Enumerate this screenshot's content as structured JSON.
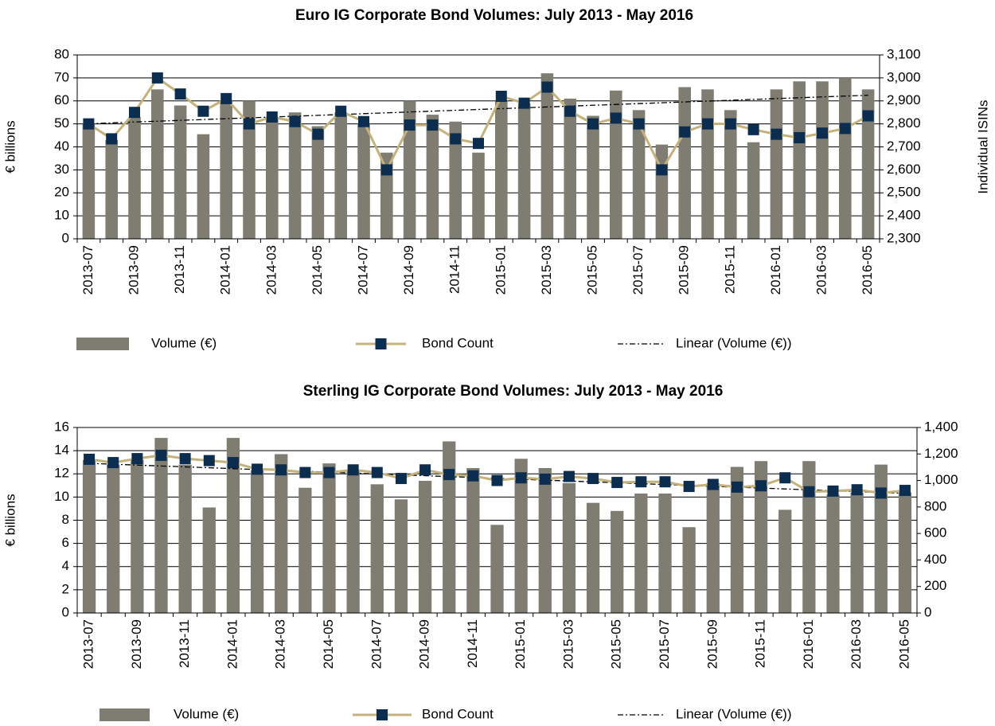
{
  "chart_data": [
    {
      "type": "bar-line",
      "title": "Euro IG Corporate Bond Volumes: July 2013 - May 2016",
      "categories": [
        "2013-07",
        null,
        "2013-09",
        null,
        "2013-11",
        null,
        "2014-01",
        null,
        "2014-03",
        null,
        "2014-05",
        null,
        "2014-07",
        null,
        "2014-09",
        null,
        "2014-11",
        null,
        "2015-01",
        null,
        "2015-03",
        null,
        "2015-05",
        null,
        "2015-07",
        null,
        "2015-09",
        null,
        "2015-11",
        null,
        "2016-01",
        null,
        "2016-03",
        null,
        "2016-05"
      ],
      "y_label": "€ billions",
      "y2_label": "Individual ISINs",
      "ylim": [
        0,
        80
      ],
      "yticks": [
        0,
        10,
        20,
        30,
        40,
        50,
        60,
        70,
        80
      ],
      "y2lim": [
        2300,
        3100
      ],
      "y2ticks": [
        {
          "value": 2300,
          "label": "2,300"
        },
        {
          "value": 2400,
          "label": "2,400"
        },
        {
          "value": 2500,
          "label": "2,500"
        },
        {
          "value": 2600,
          "label": "2,600"
        },
        {
          "value": 2700,
          "label": "2,700"
        },
        {
          "value": 2800,
          "label": "2,800"
        },
        {
          "value": 2900,
          "label": "2,900"
        },
        {
          "value": 3000,
          "label": "3,000"
        },
        {
          "value": 3100,
          "label": "3,100"
        }
      ],
      "grid": true,
      "series": [
        {
          "name": "Volume (€)",
          "type": "bar",
          "color": "#7f7c72",
          "values": [
            50,
            43,
            53,
            65,
            58,
            45.5,
            60,
            60,
            53,
            55,
            49,
            55,
            50,
            37.5,
            60,
            54,
            51,
            37.5,
            60,
            59,
            72,
            61,
            53.5,
            64.5,
            56,
            41,
            66,
            65,
            56,
            42,
            65,
            68.5,
            68.5,
            70,
            65
          ]
        },
        {
          "name": "Bond Count",
          "type": "line",
          "axis": "y2",
          "color": "#c4b27a",
          "marker_color": "#0b2d50",
          "values": [
            2800,
            2735,
            2850,
            3000,
            2930,
            2855,
            2910,
            2800,
            2830,
            2810,
            2755,
            2855,
            2810,
            2600,
            2795,
            2795,
            2735,
            2715,
            2920,
            2890,
            2960,
            2855,
            2800,
            2825,
            2800,
            2600,
            2765,
            2800,
            2800,
            2775,
            2755,
            2740,
            2760,
            2780,
            2835
          ]
        }
      ],
      "trendline": {
        "name": "Linear (Volume (€))",
        "of": 0,
        "color": "#000000"
      }
    },
    {
      "type": "bar-line",
      "title": "Sterling IG Corporate Bond Volumes: July 2013 - May 2016",
      "categories": [
        "2013-07",
        null,
        "2013-09",
        null,
        "2013-11",
        null,
        "2014-01",
        null,
        "2014-03",
        null,
        "2014-05",
        null,
        "2014-07",
        null,
        "2014-09",
        null,
        "2014-11",
        null,
        "2015-01",
        null,
        "2015-03",
        null,
        "2015-05",
        null,
        "2015-07",
        null,
        "2015-09",
        null,
        "2015-11",
        null,
        "2016-01",
        null,
        "2016-03",
        null,
        "2016-05"
      ],
      "y_label": "€ billions",
      "ylim": [
        0,
        16
      ],
      "yticks": [
        0,
        2,
        4,
        6,
        8,
        10,
        12,
        14,
        16
      ],
      "y2lim": [
        0,
        1400
      ],
      "y2ticks": [
        0,
        200,
        400,
        600,
        800,
        {
          "value": 1000,
          "label": "1,000"
        },
        {
          "value": 1200,
          "label": "1,200"
        },
        {
          "value": 1400,
          "label": "1,400"
        }
      ],
      "grid": true,
      "series": [
        {
          "name": "Volume (€)",
          "type": "bar",
          "color": "#7f7c72",
          "values": [
            13.2,
            12.8,
            13.2,
            15.1,
            12.8,
            9.1,
            15.1,
            12.3,
            13.7,
            10.8,
            12.9,
            12.2,
            11.1,
            9.8,
            11.4,
            14.8,
            12.5,
            7.6,
            13.3,
            12.5,
            11.2,
            9.5,
            8.8,
            10.3,
            10.3,
            7.4,
            11.2,
            12.6,
            13.1,
            8.9,
            13.1,
            10.2,
            10.4,
            12.8,
            10.4
          ]
        },
        {
          "name": "Bond Count",
          "type": "line",
          "axis": "y2",
          "color": "#c4b27a",
          "marker_color": "#0b2d50",
          "values": [
            1160,
            1135,
            1165,
            1190,
            1165,
            1150,
            1135,
            1085,
            1080,
            1060,
            1060,
            1080,
            1060,
            1015,
            1080,
            1045,
            1035,
            1000,
            1020,
            1010,
            1030,
            1015,
            985,
            990,
            990,
            955,
            970,
            950,
            960,
            1020,
            915,
            920,
            930,
            905,
            925
          ]
        }
      ],
      "trendline": {
        "name": "Linear (Volume (€))",
        "of": 0,
        "color": "#000000"
      }
    }
  ]
}
